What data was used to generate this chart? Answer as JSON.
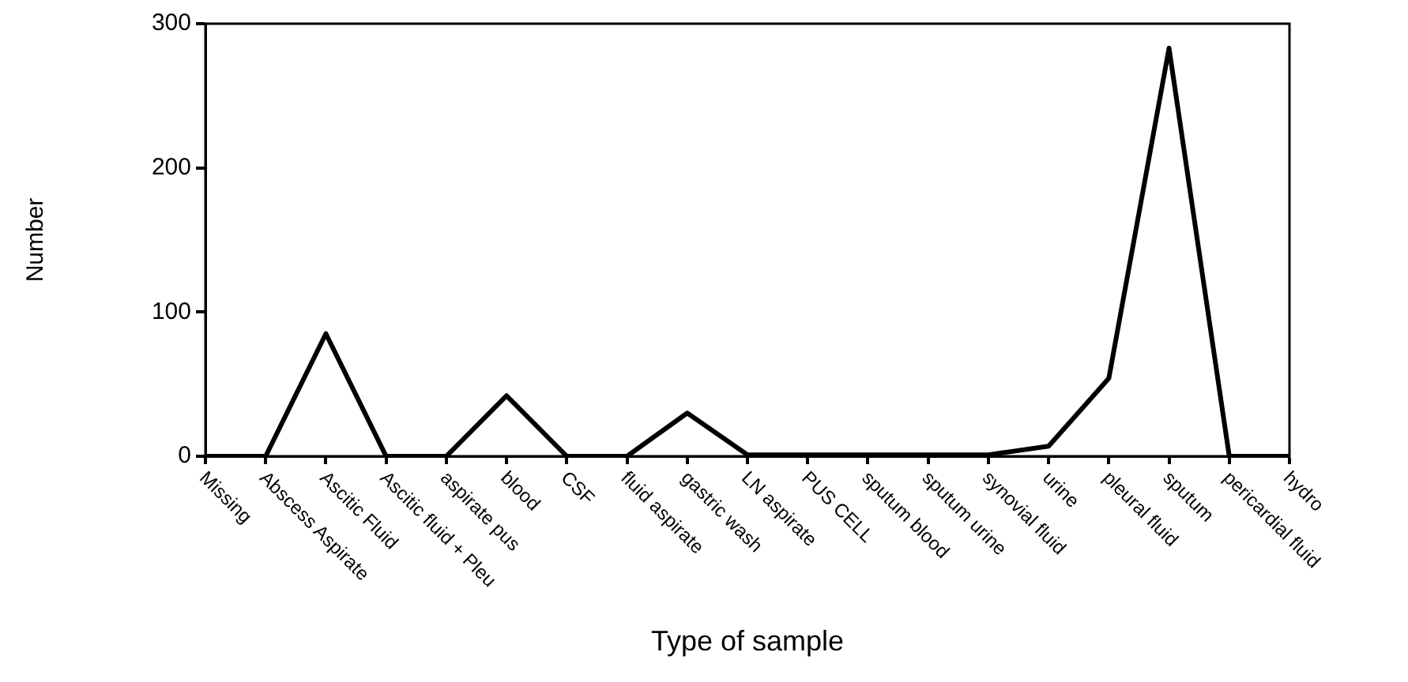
{
  "chart_data": {
    "type": "line",
    "xlabel": "Type of sample",
    "ylabel": "Number",
    "categories": [
      "Missing",
      "Abscess Aspirate",
      "Ascitic Fluid",
      "Ascitic fluid + Pleu",
      "aspirate pus",
      "blood",
      "CSF",
      "fluid aspirate",
      "gastric wash",
      "LN aspirate",
      "PUS CELL",
      "sputum blood",
      "sputum urine",
      "synovial fluid",
      "urine",
      "pleural fluid",
      "sputum",
      "pericardial fluid",
      "hydro"
    ],
    "series": [
      {
        "color": "#000000",
        "values": [
          0,
          0,
          85,
          0,
          0,
          42,
          0,
          0,
          30,
          1,
          1,
          1,
          1,
          1,
          7,
          54,
          283,
          0,
          0
        ]
      }
    ],
    "ylim": [
      0,
      300
    ],
    "yticks": [
      0,
      100,
      200,
      300
    ],
    "grid": false,
    "legend": false,
    "marker": "none",
    "line_style": "solid"
  }
}
